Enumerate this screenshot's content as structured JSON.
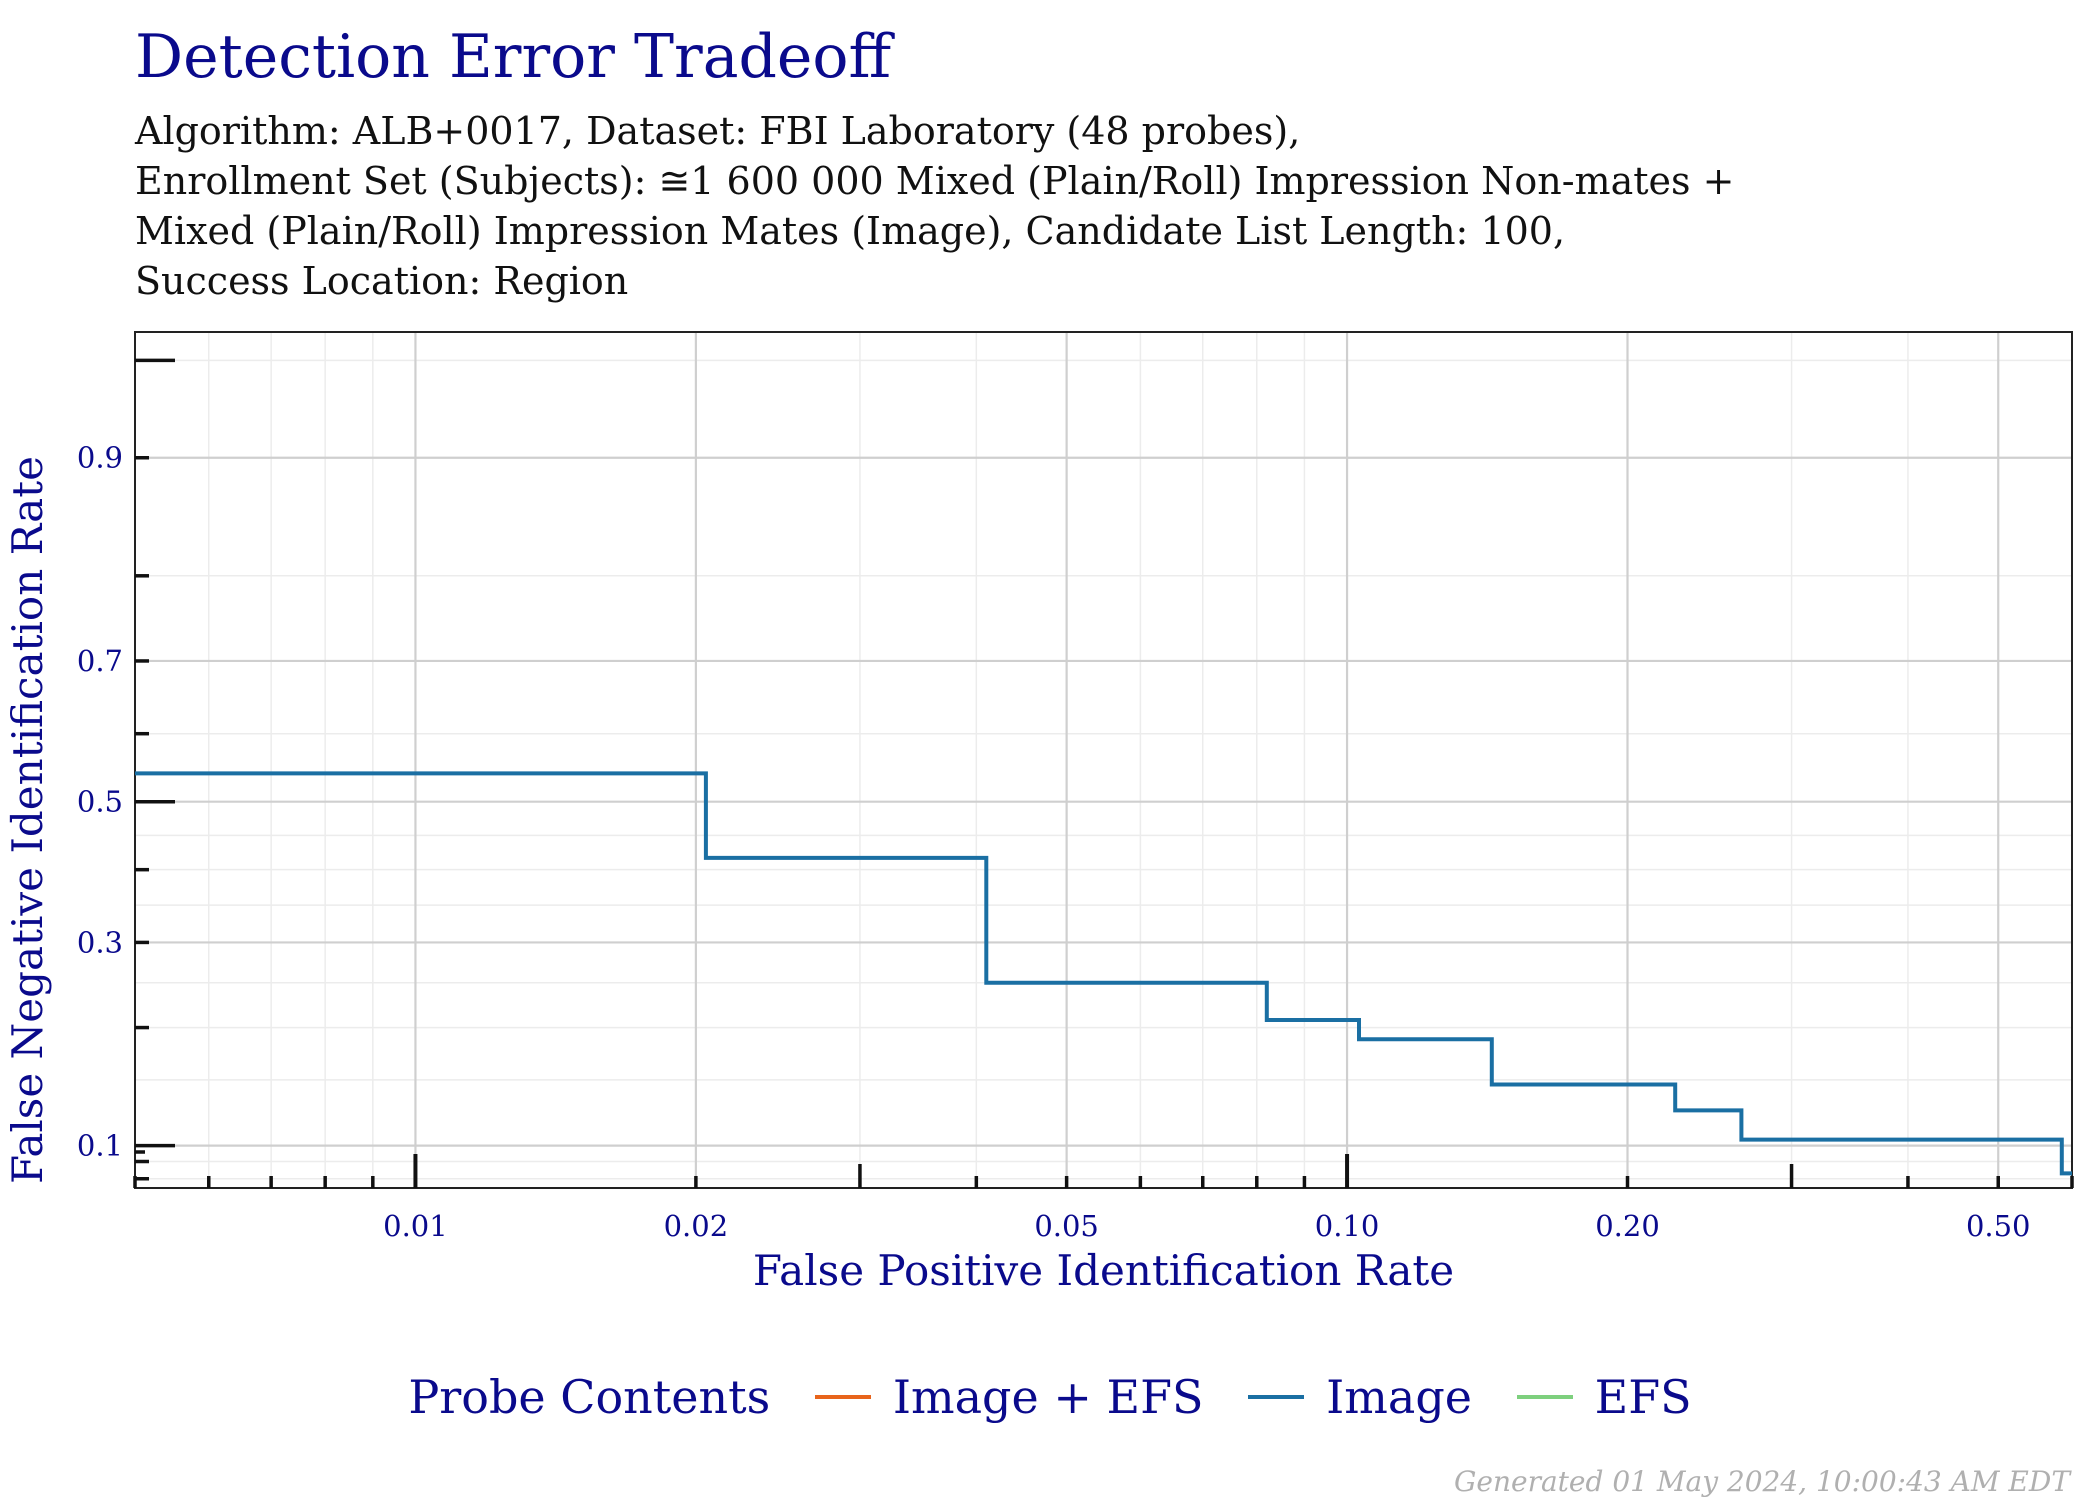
{
  "chart_data": {
    "type": "line",
    "step": true,
    "title": "Detection Error Tradeoff",
    "subtitle_lines": [
      "Algorithm: ALB+0017, Dataset: FBI Laboratory (48 probes),",
      "Enrollment Set (Subjects): ≅1 600 000 Mixed (Plain/Roll) Impression Non-mates +",
      "Mixed (Plain/Roll) Impression Mates (Image), Candidate List Length: 100,",
      "Success Location: Region"
    ],
    "xlabel": "False Positive Identification Rate",
    "ylabel": "False Negative Identification Rate",
    "x_scale": "log",
    "y_scale": "probit",
    "xlim": [
      0.005,
      0.6
    ],
    "ylim": [
      0.075,
      0.96
    ],
    "x_ticks": [
      0.01,
      0.02,
      0.05,
      0.1,
      0.2,
      0.5
    ],
    "x_tick_labels": [
      "0.01",
      "0.02",
      "0.05",
      "0.10",
      "0.20",
      "0.50"
    ],
    "y_ticks": [
      0.1,
      0.3,
      0.5,
      0.7,
      0.9
    ],
    "y_tick_labels": [
      "0.1",
      "0.3",
      "0.5",
      "0.7",
      "0.9"
    ],
    "grid": true,
    "legend": {
      "title": "Probe Contents",
      "position": "bottom",
      "entries": [
        {
          "label": "Image + EFS",
          "color": "#e8641b"
        },
        {
          "label": "Image",
          "color": "#1a6fa3"
        },
        {
          "label": "EFS",
          "color": "#7ed07e"
        }
      ]
    },
    "series": [
      {
        "name": "Image",
        "color": "#1a6fa3",
        "x": [
          0.005,
          0.0205,
          0.0205,
          0.041,
          0.041,
          0.082,
          0.082,
          0.103,
          0.103,
          0.143,
          0.143,
          0.225,
          0.225,
          0.265,
          0.265,
          0.585,
          0.585,
          0.6
        ],
        "y": [
          0.542,
          0.542,
          0.417,
          0.417,
          0.25,
          0.25,
          0.208,
          0.208,
          0.188,
          0.188,
          0.146,
          0.146,
          0.125,
          0.125,
          0.104,
          0.104,
          0.083,
          0.083
        ]
      }
    ]
  },
  "footer": "Generated 01 May 2024, 10:00:43 AM EDT"
}
